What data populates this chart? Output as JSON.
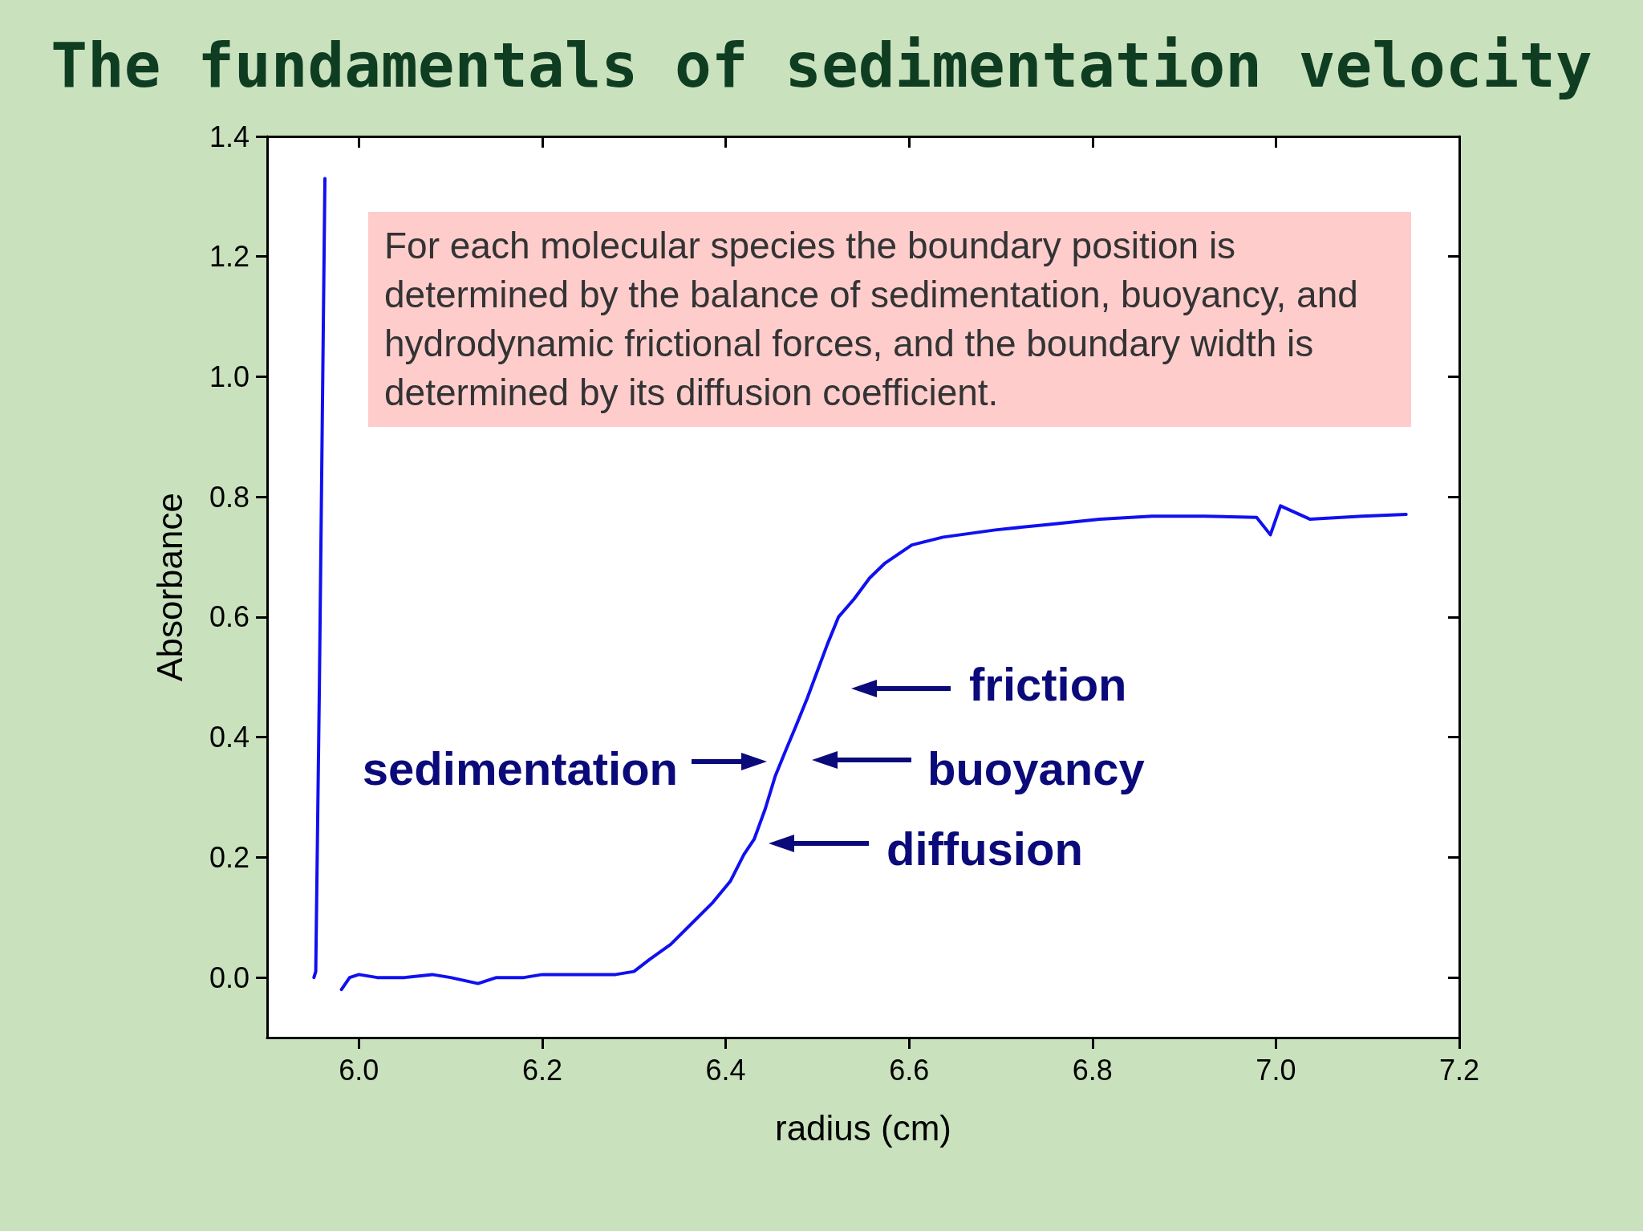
{
  "chart_data": {
    "type": "line",
    "title": "The fundamentals of sedimentation velocity",
    "xlabel": "radius (cm)",
    "ylabel": "Absorbance",
    "x": [
      5.951,
      5.953,
      5.957,
      5.963,
      5.967,
      5.975,
      5.981,
      5.99,
      6.0,
      6.02,
      6.05,
      6.08,
      6.1,
      6.13,
      6.15,
      6.18,
      6.2,
      6.25,
      6.28,
      6.3,
      6.317,
      6.34,
      6.363,
      6.386,
      6.405,
      6.42,
      6.431,
      6.443,
      6.454,
      6.466,
      6.477,
      6.489,
      6.5,
      6.511,
      6.523,
      6.54,
      6.557,
      6.574,
      6.603,
      6.637,
      6.694,
      6.751,
      6.808,
      6.865,
      6.922,
      6.979,
      6.994,
      7.005,
      7.037,
      7.094,
      7.142
    ],
    "series": [
      {
        "color": "#1010f0",
        "values": [
          0.0,
          0.01,
          0.49,
          1.33,
          null,
          null,
          -0.02,
          0.0,
          0.005,
          0.0,
          0.0,
          0.005,
          0.0,
          -0.01,
          0.0,
          0.0,
          0.005,
          0.005,
          0.005,
          0.01,
          0.03,
          0.055,
          0.09,
          0.125,
          0.16,
          0.205,
          0.23,
          0.28,
          0.335,
          0.38,
          0.42,
          0.465,
          0.51,
          0.555,
          0.6,
          0.63,
          0.665,
          0.69,
          0.72,
          0.733,
          0.745,
          0.754,
          0.763,
          0.768,
          0.768,
          0.766,
          0.737,
          0.785,
          0.763,
          0.768,
          0.771
        ]
      }
    ],
    "xlim": [
      5.9,
      7.2
    ],
    "xticks": [
      {
        "value": 6,
        "label": "6.0"
      },
      {
        "value": 6.2,
        "label": "6.2"
      },
      {
        "value": 6.4,
        "label": "6.4"
      },
      {
        "value": 6.6,
        "label": "6.6"
      },
      {
        "value": 6.8,
        "label": "6.8"
      },
      {
        "value": 7,
        "label": "7.0"
      },
      {
        "value": 7.2,
        "label": "7.2"
      }
    ],
    "ylim": [
      -0.1,
      1.4
    ],
    "yticks": [
      {
        "value": 0,
        "label": "0.0"
      },
      {
        "value": 0.2,
        "label": "0.2"
      },
      {
        "value": 0.4,
        "label": "0.4"
      },
      {
        "value": 0.6,
        "label": "0.6"
      },
      {
        "value": 0.8,
        "label": "0.8"
      },
      {
        "value": 1,
        "label": "1.0"
      },
      {
        "value": 1.2,
        "label": "1.2"
      },
      {
        "value": 1.4,
        "label": "1.4"
      }
    ],
    "grid": false,
    "marker": "none",
    "line_style": "solid",
    "annotations": [
      "For each molecular species the boundary position is determined by the balance of sedimentation, buoyancy, and hydrodynamic frictional forces, and the boundary width is determined by its diffusion coefficient.",
      "friction",
      "sedimentation",
      "buoyancy",
      "diffusion"
    ]
  }
}
